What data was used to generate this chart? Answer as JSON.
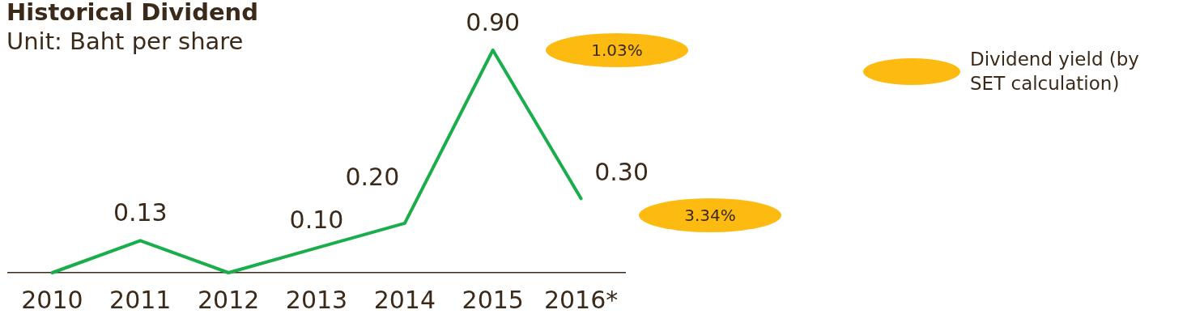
{
  "chart_data": {
    "type": "line",
    "title": "Historical Dividend",
    "subtitle": "Unit: Baht per share",
    "categories": [
      "2010",
      "2011",
      "2012",
      "2013",
      "2014",
      "2015",
      "2016*"
    ],
    "series": [
      {
        "color": "#1aad4b",
        "values": [
          0,
          0.13,
          0,
          0.1,
          0.2,
          0.9,
          0.3
        ],
        "value_labels": [
          null,
          "0.13",
          null,
          "0.10",
          "0.20",
          "0.90",
          "0.30"
        ]
      }
    ],
    "tick_labels": "x",
    "grid": false,
    "marker": "none",
    "line_style": "solid",
    "annotations": [
      "1.03%",
      "3.34%",
      "Dividend yield (by SET calculation)"
    ]
  }
}
